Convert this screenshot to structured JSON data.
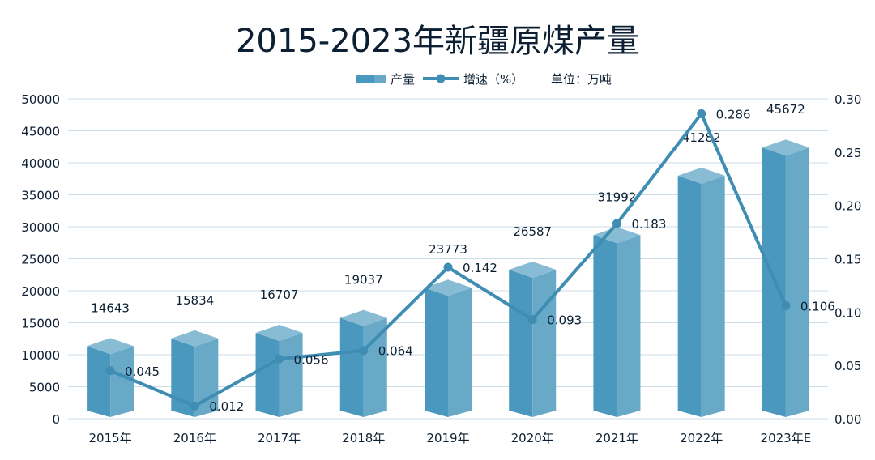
{
  "chart_data": {
    "type": "bar",
    "title": "2015-2023年新疆原煤产量",
    "unit_label": "单位：万吨",
    "categories": [
      "2015年",
      "2016年",
      "2017年",
      "2018年",
      "2019年",
      "2020年",
      "2021年",
      "2022年",
      "2023年E"
    ],
    "series": [
      {
        "name": "产量",
        "type": "bar",
        "axis": "left",
        "values": [
          14643,
          15834,
          16707,
          19037,
          23773,
          26587,
          31992,
          41282,
          45672
        ]
      },
      {
        "name": "增速（%）",
        "type": "line",
        "axis": "right",
        "values": [
          0.045,
          0.012,
          0.056,
          0.064,
          0.142,
          0.093,
          0.183,
          0.286,
          0.106
        ]
      }
    ],
    "y_left": {
      "min": 0,
      "max": 50000,
      "ticks": [
        "0",
        "5000",
        "10000",
        "15000",
        "20000",
        "25000",
        "30000",
        "35000",
        "40000",
        "45000",
        "50000"
      ]
    },
    "y_right": {
      "min": 0,
      "max": 0.3,
      "ticks": [
        "0.00",
        "0.05",
        "0.10",
        "0.15",
        "0.20",
        "0.25",
        "0.30"
      ]
    },
    "bar_labels": [
      "14643",
      "15834",
      "16707",
      "19037",
      "23773",
      "26587",
      "31992",
      "41282",
      "45672"
    ],
    "line_labels": [
      "0.045",
      "0.012",
      "0.056",
      "0.064",
      "0.142",
      "0.093",
      "0.183",
      "0.286",
      "0.106"
    ],
    "grid": true,
    "legend_position": "top-center",
    "colors": {
      "bar_front": "#4a98bd",
      "bar_side": "#68a9c8",
      "bar_top": "#88bbd4",
      "line": "#3f8db3",
      "grid": "#c9dde8",
      "text": "#0c1f33"
    }
  }
}
